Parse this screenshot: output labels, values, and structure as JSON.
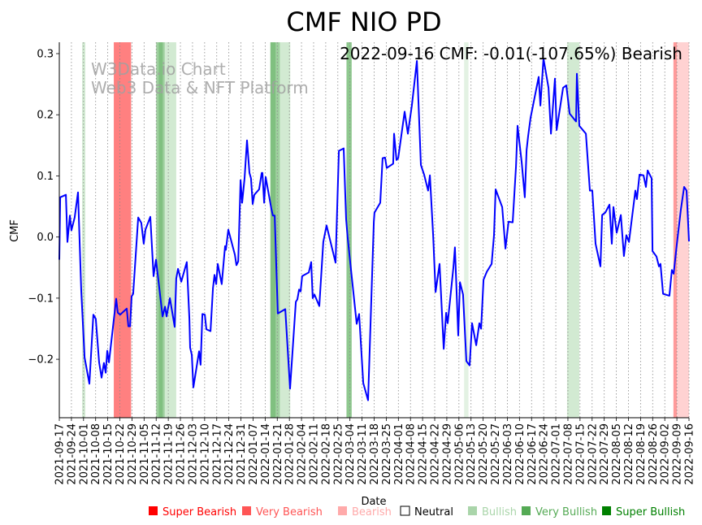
{
  "chart_data": {
    "type": "line",
    "title": "CMF NIO PD",
    "annotation": "2022-09-16 CMF: -0.01(-107.65%) Bearish",
    "watermark": [
      "W3Data.io Chart",
      "Web3 Data & NFT Platform"
    ],
    "xlabel": "Date",
    "ylabel": "CMF",
    "start_date": "2021-09-17",
    "xlim_days": [
      0,
      364
    ],
    "ylim": [
      -0.2956,
      0.3186
    ],
    "yticks": [
      -0.2,
      -0.1,
      0.0,
      0.1,
      0.2,
      0.3
    ],
    "ytick_labels": [
      "−0.2",
      "−0.1",
      "0.0",
      "0.1",
      "0.2",
      "0.3"
    ],
    "xtick_labels": [
      "2021-09-17",
      "2021-09-24",
      "2021-10-01",
      "2021-10-08",
      "2021-10-15",
      "2021-10-22",
      "2021-10-29",
      "2021-11-05",
      "2021-11-12",
      "2021-11-19",
      "2021-11-26",
      "2021-12-03",
      "2021-12-10",
      "2021-12-17",
      "2021-12-24",
      "2021-12-31",
      "2022-01-07",
      "2022-01-14",
      "2022-01-21",
      "2022-01-28",
      "2022-02-04",
      "2022-02-11",
      "2022-02-18",
      "2022-02-25",
      "2022-03-04",
      "2022-03-11",
      "2022-03-18",
      "2022-03-25",
      "2022-04-01",
      "2022-04-08",
      "2022-04-15",
      "2022-04-22",
      "2022-04-29",
      "2022-05-06",
      "2022-05-13",
      "2022-05-20",
      "2022-05-27",
      "2022-06-03",
      "2022-06-10",
      "2022-06-17",
      "2022-06-24",
      "2022-07-01",
      "2022-07-08",
      "2022-07-15",
      "2022-07-22",
      "2022-07-29",
      "2022-08-05",
      "2022-08-12",
      "2022-08-19",
      "2022-08-26",
      "2022-09-02",
      "2022-09-09",
      "2022-09-16"
    ],
    "grid": "x-dotted-weekly",
    "series": [
      {
        "name": "CMF",
        "color": "#0000ff",
        "points_day_value": [
          [
            0,
            -0.037
          ],
          [
            0.5,
            0.065
          ],
          [
            3.8,
            0.069
          ],
          [
            4.7,
            -0.008
          ],
          [
            6.1,
            0.035
          ],
          [
            7.0,
            0.011
          ],
          [
            8.9,
            0.032
          ],
          [
            10.8,
            0.073
          ],
          [
            12.7,
            -0.088
          ],
          [
            14.6,
            -0.197
          ],
          [
            17.4,
            -0.24
          ],
          [
            19.7,
            -0.127
          ],
          [
            21.1,
            -0.134
          ],
          [
            23.0,
            -0.205
          ],
          [
            24.4,
            -0.23
          ],
          [
            25.8,
            -0.206
          ],
          [
            26.8,
            -0.222
          ],
          [
            27.7,
            -0.186
          ],
          [
            28.7,
            -0.205
          ],
          [
            32.9,
            -0.101
          ],
          [
            33.8,
            -0.124
          ],
          [
            35.2,
            -0.127
          ],
          [
            39.0,
            -0.117
          ],
          [
            39.9,
            -0.146
          ],
          [
            40.9,
            -0.146
          ],
          [
            41.8,
            -0.097
          ],
          [
            42.7,
            -0.093
          ],
          [
            45.6,
            0.032
          ],
          [
            47.4,
            0.023
          ],
          [
            48.8,
            -0.011
          ],
          [
            49.8,
            0.012
          ],
          [
            52.6,
            0.033
          ],
          [
            54.5,
            -0.064
          ],
          [
            55.9,
            -0.037
          ],
          [
            59.7,
            -0.13
          ],
          [
            61.1,
            -0.114
          ],
          [
            62.0,
            -0.13
          ],
          [
            63.9,
            -0.1
          ],
          [
            66.7,
            -0.147
          ],
          [
            67.6,
            -0.068
          ],
          [
            68.6,
            -0.052
          ],
          [
            70.5,
            -0.073
          ],
          [
            73.7,
            -0.041
          ],
          [
            75.2,
            -0.134
          ],
          [
            75.6,
            -0.181
          ],
          [
            76.6,
            -0.193
          ],
          [
            77.5,
            -0.246
          ],
          [
            80.8,
            -0.187
          ],
          [
            81.7,
            -0.209
          ],
          [
            82.7,
            -0.126
          ],
          [
            84.1,
            -0.127
          ],
          [
            85.0,
            -0.151
          ],
          [
            87.4,
            -0.154
          ],
          [
            88.8,
            -0.084
          ],
          [
            89.7,
            -0.062
          ],
          [
            90.7,
            -0.077
          ],
          [
            91.6,
            -0.044
          ],
          [
            93.9,
            -0.077
          ],
          [
            95.8,
            -0.015
          ],
          [
            96.3,
            -0.021
          ],
          [
            97.7,
            0.012
          ],
          [
            101.5,
            -0.029
          ],
          [
            102.4,
            -0.046
          ],
          [
            103.4,
            -0.04
          ],
          [
            104.8,
            0.093
          ],
          [
            105.7,
            0.056
          ],
          [
            107.1,
            0.096
          ],
          [
            108.5,
            0.158
          ],
          [
            109.9,
            0.105
          ],
          [
            110.8,
            0.096
          ],
          [
            111.8,
            0.054
          ],
          [
            112.7,
            0.069
          ],
          [
            115.5,
            0.078
          ],
          [
            117.0,
            0.105
          ],
          [
            117.4,
            0.105
          ],
          [
            118.4,
            0.056
          ],
          [
            119.3,
            0.098
          ],
          [
            122.6,
            0.046
          ],
          [
            123.5,
            0.035
          ],
          [
            124.5,
            0.035
          ],
          [
            126.3,
            -0.125
          ],
          [
            130.6,
            -0.118
          ],
          [
            133.4,
            -0.248
          ],
          [
            136.7,
            -0.106
          ],
          [
            137.6,
            -0.102
          ],
          [
            138.6,
            -0.086
          ],
          [
            139.5,
            -0.089
          ],
          [
            140.4,
            -0.064
          ],
          [
            144.2,
            -0.058
          ],
          [
            145.6,
            -0.041
          ],
          [
            146.5,
            -0.1
          ],
          [
            147.5,
            -0.094
          ],
          [
            150.3,
            -0.113
          ],
          [
            152.6,
            -0.008
          ],
          [
            154.5,
            0.019
          ],
          [
            159.7,
            -0.042
          ],
          [
            161.6,
            0.141
          ],
          [
            164.4,
            0.145
          ],
          [
            165.8,
            0.029
          ],
          [
            166.7,
            -0.001
          ],
          [
            168.2,
            -0.042
          ],
          [
            171.9,
            -0.142
          ],
          [
            173.3,
            -0.126
          ],
          [
            175.7,
            -0.239
          ],
          [
            178.5,
            -0.267
          ],
          [
            181.8,
            0.025
          ],
          [
            182.2,
            0.04
          ],
          [
            185.5,
            0.056
          ],
          [
            186.9,
            0.129
          ],
          [
            188.3,
            0.13
          ],
          [
            189.3,
            0.113
          ],
          [
            193.0,
            0.12
          ],
          [
            193.5,
            0.169
          ],
          [
            194.9,
            0.126
          ],
          [
            195.9,
            0.129
          ],
          [
            199.6,
            0.205
          ],
          [
            201.5,
            0.169
          ],
          [
            203.8,
            0.215
          ],
          [
            206.7,
            0.288
          ],
          [
            209.0,
            0.118
          ],
          [
            210.9,
            0.102
          ],
          [
            213.2,
            0.076
          ],
          [
            214.2,
            0.101
          ],
          [
            216.1,
            0.003
          ],
          [
            217.5,
            -0.09
          ],
          [
            219.8,
            -0.044
          ],
          [
            222.2,
            -0.183
          ],
          [
            223.6,
            -0.124
          ],
          [
            224.5,
            -0.141
          ],
          [
            227.8,
            -0.05
          ],
          [
            228.7,
            -0.017
          ],
          [
            230.6,
            -0.161
          ],
          [
            231.6,
            -0.074
          ],
          [
            233.4,
            -0.094
          ],
          [
            235.3,
            -0.203
          ],
          [
            237.2,
            -0.21
          ],
          [
            238.6,
            -0.141
          ],
          [
            241.0,
            -0.177
          ],
          [
            242.8,
            -0.141
          ],
          [
            243.8,
            -0.15
          ],
          [
            245.2,
            -0.07
          ],
          [
            247.1,
            -0.057
          ],
          [
            249.9,
            -0.044
          ],
          [
            251.3,
            0.003
          ],
          [
            252.2,
            0.078
          ],
          [
            256.0,
            0.049
          ],
          [
            257.9,
            -0.019
          ],
          [
            259.7,
            0.025
          ],
          [
            262.1,
            0.024
          ],
          [
            264.0,
            0.116
          ],
          [
            264.9,
            0.182
          ],
          [
            267.3,
            0.122
          ],
          [
            269.1,
            0.065
          ],
          [
            270.1,
            0.142
          ],
          [
            271.0,
            0.165
          ],
          [
            272.4,
            0.195
          ],
          [
            273.8,
            0.215
          ],
          [
            277.1,
            0.262
          ],
          [
            278.1,
            0.215
          ],
          [
            279.9,
            0.292
          ],
          [
            282.8,
            0.244
          ],
          [
            284.2,
            0.169
          ],
          [
            286.5,
            0.259
          ],
          [
            287.5,
            0.175
          ],
          [
            291.2,
            0.244
          ],
          [
            293.1,
            0.248
          ],
          [
            295.0,
            0.202
          ],
          [
            298.7,
            0.189
          ],
          [
            299.2,
            0.267
          ],
          [
            300.6,
            0.182
          ],
          [
            304.4,
            0.169
          ],
          [
            306.7,
            0.076
          ],
          [
            308.1,
            0.076
          ],
          [
            310.0,
            -0.011
          ],
          [
            312.8,
            -0.048
          ],
          [
            313.8,
            0.036
          ],
          [
            315.6,
            0.04
          ],
          [
            318.0,
            0.053
          ],
          [
            319.4,
            -0.011
          ],
          [
            320.3,
            0.049
          ],
          [
            322.2,
            0.007
          ],
          [
            324.6,
            0.036
          ],
          [
            326.4,
            -0.031
          ],
          [
            327.8,
            0.003
          ],
          [
            329.3,
            -0.008
          ],
          [
            333.0,
            0.076
          ],
          [
            333.9,
            0.062
          ],
          [
            335.4,
            0.102
          ],
          [
            337.7,
            0.101
          ],
          [
            339.1,
            0.082
          ],
          [
            340.1,
            0.109
          ],
          [
            342.0,
            0.098
          ],
          [
            342.4,
            0.096
          ],
          [
            342.9,
            -0.023
          ],
          [
            345.2,
            -0.032
          ],
          [
            346.6,
            -0.048
          ],
          [
            347.5,
            -0.044
          ],
          [
            349.0,
            -0.093
          ],
          [
            352.7,
            -0.096
          ],
          [
            354.1,
            -0.054
          ],
          [
            355.1,
            -0.06
          ],
          [
            357.0,
            -0.011
          ],
          [
            359.3,
            0.045
          ],
          [
            361.2,
            0.082
          ],
          [
            362.6,
            0.076
          ],
          [
            364.0,
            -0.007
          ]
        ]
      }
    ],
    "signal_bands": [
      {
        "from": 13.2,
        "to": 15.0,
        "signal": "Bullish",
        "color": "#d2ead2"
      },
      {
        "from": 31.5,
        "to": 41.5,
        "signal": "Super Bearish",
        "color": "#ff8080"
      },
      {
        "from": 56.0,
        "to": 61.0,
        "signal": "Very Bullish",
        "color": "#9fd09f"
      },
      {
        "from": 57.5,
        "to": 59.8,
        "signal": "Super Bullish",
        "color": "#80c080"
      },
      {
        "from": 61.0,
        "to": 67.6,
        "signal": "Bullish",
        "color": "#d2ead2"
      },
      {
        "from": 122.0,
        "to": 127.0,
        "signal": "Super Bullish",
        "color": "#80c080"
      },
      {
        "from": 125.0,
        "to": 127.5,
        "signal": "Very Bullish",
        "color": "#9fd09f"
      },
      {
        "from": 127.5,
        "to": 133.5,
        "signal": "Bullish",
        "color": "#d2ead2"
      },
      {
        "from": 166.0,
        "to": 169.0,
        "signal": "Very Bullish",
        "color": "#8fc88f"
      },
      {
        "from": 234.0,
        "to": 236.5,
        "signal": "Bullish",
        "color": "#e3f2e3"
      },
      {
        "from": 293.5,
        "to": 300.6,
        "signal": "Bullish",
        "color": "#d2ead2"
      },
      {
        "from": 355.0,
        "to": 357.0,
        "signal": "Very Bearish",
        "color": "#ff9a9a"
      },
      {
        "from": 357.0,
        "to": 364.0,
        "signal": "Bearish",
        "color": "#ffd2d2"
      }
    ],
    "legend_position": "bottom",
    "legend": [
      {
        "label": "Super Bearish",
        "color": "#ff0000",
        "text_color": "#ff0000"
      },
      {
        "label": "Very Bearish",
        "color": "#ff5555",
        "text_color": "#ff5555"
      },
      {
        "label": "Bearish",
        "color": "#ffaaaa",
        "text_color": "#ffaaaa"
      },
      {
        "label": "Neutral",
        "color": "#ffffff",
        "text_color": "#000000"
      },
      {
        "label": "Bullish",
        "color": "#aad5aa",
        "text_color": "#aad5aa"
      },
      {
        "label": "Very Bullish",
        "color": "#55aa55",
        "text_color": "#55aa55"
      },
      {
        "label": "Super Bullish",
        "color": "#008000",
        "text_color": "#008000"
      }
    ]
  }
}
